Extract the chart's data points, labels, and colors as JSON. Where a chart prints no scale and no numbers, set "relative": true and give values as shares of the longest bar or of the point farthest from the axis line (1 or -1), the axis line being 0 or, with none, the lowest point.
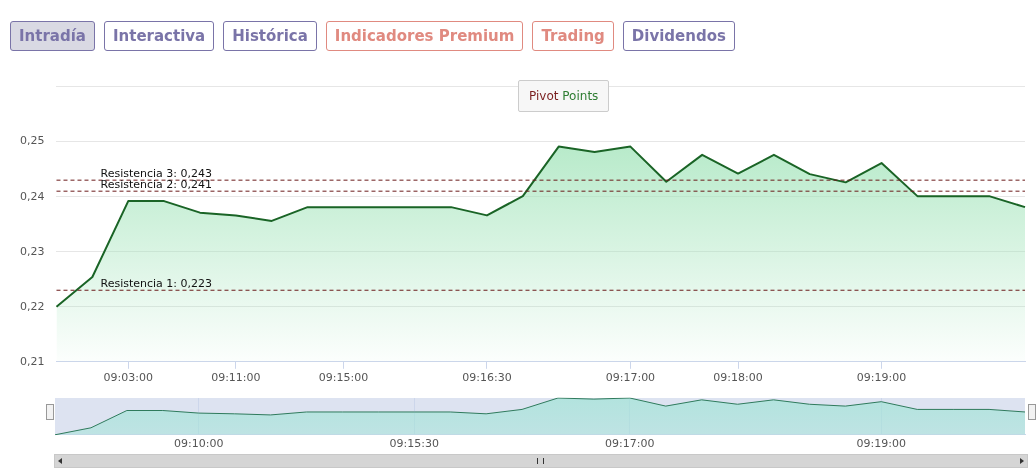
{
  "chart_data": [
    {
      "type": "area",
      "marker": "none",
      "categories": [
        null,
        null,
        "09:03:00",
        null,
        null,
        "09:11:00",
        null,
        null,
        "09:15:00",
        null,
        null,
        null,
        "09:16:30",
        null,
        null,
        null,
        "09:17:00",
        null,
        null,
        "09:18:00",
        null,
        null,
        null,
        "09:19:00",
        null,
        null,
        null,
        null
      ],
      "series": [
        {
          "color": "#1a6426",
          "values": [
            0.22,
            0.2254,
            0.2392,
            0.2392,
            0.2371,
            0.2366,
            0.2356,
            0.2381,
            0.2381,
            0.2381,
            0.2381,
            0.2381,
            0.2366,
            0.2401,
            0.2491,
            0.2481,
            0.2491,
            0.2427,
            0.2476,
            0.2442,
            0.2476,
            0.2441,
            0.2426,
            0.2461,
            0.2401,
            0.2401,
            0.2401,
            0.2381
          ]
        }
      ],
      "ylim": [
        0.21,
        0.26
      ],
      "yticks": [
        {
          "value": 0.21,
          "label": "0,21"
        },
        {
          "value": 0.22,
          "label": "0,22"
        },
        {
          "value": 0.23,
          "label": "0,23"
        },
        {
          "value": 0.24,
          "label": "0,24"
        },
        {
          "value": 0.25,
          "label": "0,25"
        },
        {
          "value": 0.26,
          "label": null
        }
      ],
      "grid": "y",
      "ref_lines": [
        {
          "axis": "y",
          "value": 0.243,
          "label": "Resistencia 3: 0,243",
          "color": "#6b1a1a",
          "line_style": "dashed"
        },
        {
          "axis": "y",
          "value": 0.241,
          "label": "Resistencia 2: 0,241",
          "color": "#6b1a1a",
          "line_style": "dashed"
        },
        {
          "axis": "y",
          "value": 0.223,
          "label": "Resistencia 1: 0,223",
          "color": "#6b1a1a",
          "line_style": "dashed"
        }
      ],
      "annotations": [
        "Intradía",
        "Interactiva",
        "Histórica",
        "Indicadores Premium",
        "Trading",
        "Dividendos",
        "Pivot Points"
      ]
    },
    {
      "type": "area",
      "relative": true,
      "categories": [
        null,
        null,
        null,
        null,
        "09:10:00",
        null,
        null,
        null,
        null,
        null,
        "09:15:30",
        null,
        null,
        null,
        null,
        null,
        "09:17:00",
        null,
        null,
        null,
        null,
        null,
        null,
        "09:19:00",
        null,
        null,
        null,
        null
      ],
      "series": [
        {
          "color": "#2f7a5c",
          "values": [
            0,
            0.19,
            0.66,
            0.66,
            0.59,
            0.57,
            0.54,
            0.62,
            0.62,
            0.62,
            0.62,
            0.62,
            0.57,
            0.69,
            1,
            0.97,
            1,
            0.78,
            0.95,
            0.83,
            0.95,
            0.83,
            0.78,
            0.9,
            0.69,
            0.69,
            0.69,
            0.62
          ]
        }
      ],
      "grid": "x"
    }
  ]
}
